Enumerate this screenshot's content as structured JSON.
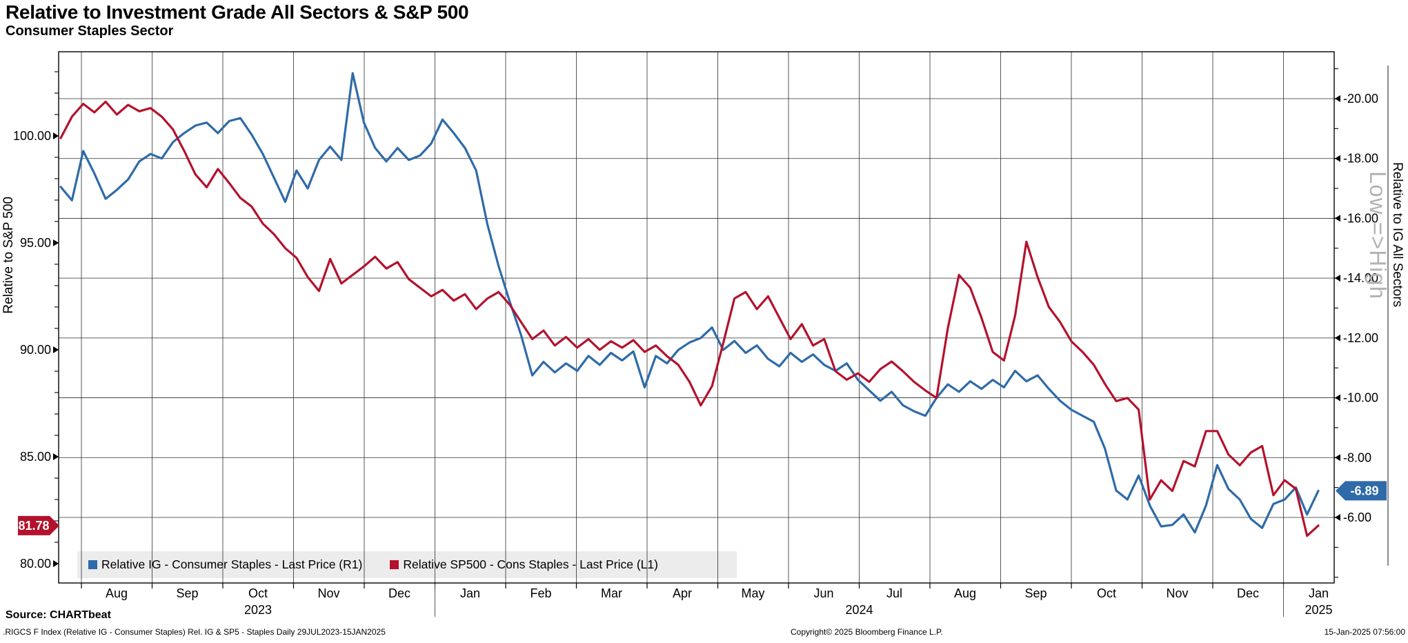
{
  "header": {
    "title": "Relative to Investment Grade All Sectors & S&P 500",
    "subtitle": "Consumer Staples Sector"
  },
  "left_axis": {
    "title": "Relative to S&P 500",
    "tick_labels": [
      "100.00",
      "95.00",
      "90.00",
      "85.00",
      "80.00"
    ],
    "tick_values": [
      100,
      95,
      90,
      85,
      80
    ],
    "last_value_label": "81.78",
    "last_value": 81.78,
    "box_color": "#b3122d"
  },
  "right_axis": {
    "title": "Relative to IG All Sectors",
    "note": "Low =>High",
    "tick_labels": [
      "-20.00",
      "-18.00",
      "-16.00",
      "-14.00",
      "-12.00",
      "-10.00",
      "-8.00",
      "-6.00"
    ],
    "tick_values": [
      -20,
      -18,
      -16,
      -14,
      -12,
      -10,
      -8,
      -6
    ],
    "last_value_label": "-6.89",
    "last_value": -6.89,
    "box_color": "#2e6ba8"
  },
  "x_axis": {
    "months": [
      "Aug",
      "Sep",
      "Oct",
      "Nov",
      "Dec",
      "Jan",
      "Feb",
      "Mar",
      "Apr",
      "May",
      "Jun",
      "Jul",
      "Aug",
      "Sep",
      "Oct",
      "Nov",
      "Dec",
      "Jan"
    ],
    "years": [
      {
        "label": "2023",
        "pos": "center",
        "month_index": 2
      },
      {
        "label": "2024",
        "pos": "boundary",
        "month_index": 11
      },
      {
        "label": "2025",
        "pos": "center",
        "month_index": 17
      }
    ],
    "year_separator_month_indices": [
      5,
      17
    ]
  },
  "legend": {
    "items": [
      {
        "label": "Relative IG - Consumer Staples - Last Price (R1)",
        "color": "#2e6ba8"
      },
      {
        "label": "Relative SP500 - Cons Staples - Last Price (L1)",
        "color": "#b3122d"
      }
    ]
  },
  "footer": {
    "source": "Source: CHARTbeat",
    "description": ".RIGCS F Index (Relative IG - Consumer Staples) Rel. IG & SP5 - Staples  Daily 29JUL2023-15JAN2025",
    "copyright": "Copyright© 2025 Bloomberg Finance L.P.",
    "timestamp": "15-Jan-2025 07:56:00"
  },
  "chart_data": {
    "type": "line",
    "title": "Relative to Investment Grade All Sectors & S&P 500 - Consumer Staples Sector",
    "x_start": "29JUL2023",
    "x_end": "15JAN2025",
    "grid": true,
    "left_axis_label": "Relative to S&P 500",
    "right_axis_label": "Relative to IG All Sectors",
    "left_ylim_ticks": [
      80,
      100
    ],
    "right_ylim_ticks": [
      -20,
      -6
    ],
    "series": [
      {
        "name": "Relative IG - Consumer Staples - Last Price (R1)",
        "axis": "right",
        "color": "#2e6ba8",
        "last_price": -6.89,
        "values": [
          -17.05,
          -16.6,
          -18.25,
          -17.5,
          -16.65,
          -16.95,
          -17.3,
          -17.9,
          -18.15,
          -18.0,
          -18.55,
          -18.85,
          -19.1,
          -19.2,
          -18.85,
          -19.25,
          -19.35,
          -18.8,
          -18.15,
          -17.35,
          -16.55,
          -17.6,
          -17.0,
          -17.95,
          -18.4,
          -17.95,
          -20.85,
          -19.2,
          -18.35,
          -17.9,
          -18.35,
          -17.95,
          -18.1,
          -18.5,
          -19.3,
          -18.85,
          -18.35,
          -17.6,
          -15.8,
          -14.4,
          -13.2,
          -12.1,
          -10.75,
          -11.2,
          -10.85,
          -11.15,
          -10.9,
          -11.4,
          -11.1,
          -11.5,
          -11.25,
          -11.55,
          -10.35,
          -11.4,
          -11.15,
          -11.6,
          -11.85,
          -12.0,
          -12.35,
          -11.6,
          -11.9,
          -11.5,
          -11.75,
          -11.3,
          -11.05,
          -11.5,
          -11.2,
          -11.45,
          -11.1,
          -10.9,
          -11.15,
          -10.6,
          -10.25,
          -9.9,
          -10.2,
          -9.75,
          -9.55,
          -9.4,
          -10.0,
          -10.45,
          -10.2,
          -10.55,
          -10.3,
          -10.6,
          -10.35,
          -10.9,
          -10.55,
          -10.75,
          -10.3,
          -9.9,
          -9.6,
          -9.4,
          -9.2,
          -8.3,
          -6.9,
          -6.6,
          -7.4,
          -6.4,
          -5.7,
          -5.75,
          -6.1,
          -5.5,
          -6.4,
          -7.75,
          -6.95,
          -6.6,
          -5.95,
          -5.65,
          -6.45,
          -6.6,
          -7.0,
          -6.1,
          -6.89
        ]
      },
      {
        "name": "Relative SP500 - Cons Staples - Last Price (L1)",
        "axis": "left",
        "color": "#b3122d",
        "last_price": 81.78,
        "values": [
          99.9,
          100.9,
          101.5,
          101.1,
          101.6,
          101.0,
          101.45,
          101.15,
          101.3,
          100.9,
          100.3,
          99.3,
          98.2,
          97.6,
          98.45,
          97.8,
          97.1,
          96.7,
          95.9,
          95.4,
          94.75,
          94.3,
          93.4,
          92.75,
          94.25,
          93.1,
          93.5,
          93.9,
          94.35,
          93.8,
          94.1,
          93.3,
          92.9,
          92.5,
          92.8,
          92.3,
          92.6,
          91.9,
          92.4,
          92.7,
          92.1,
          91.3,
          90.5,
          90.9,
          90.2,
          90.6,
          90.1,
          90.5,
          90.0,
          90.4,
          90.1,
          90.45,
          89.9,
          90.2,
          89.7,
          89.3,
          88.5,
          87.4,
          88.3,
          90.3,
          92.4,
          92.7,
          91.9,
          92.5,
          91.5,
          90.5,
          91.2,
          90.2,
          90.5,
          89.0,
          88.6,
          88.9,
          88.5,
          89.1,
          89.45,
          89.0,
          88.5,
          88.1,
          87.75,
          91.0,
          93.5,
          92.9,
          91.5,
          89.9,
          89.5,
          91.6,
          95.05,
          93.4,
          92.0,
          91.3,
          90.4,
          89.9,
          89.3,
          88.4,
          87.6,
          87.75,
          87.2,
          83.0,
          83.9,
          83.4,
          84.8,
          84.55,
          86.2,
          86.2,
          85.1,
          84.6,
          85.2,
          85.5,
          83.2,
          83.9,
          83.5,
          81.3,
          81.78
        ]
      }
    ]
  }
}
